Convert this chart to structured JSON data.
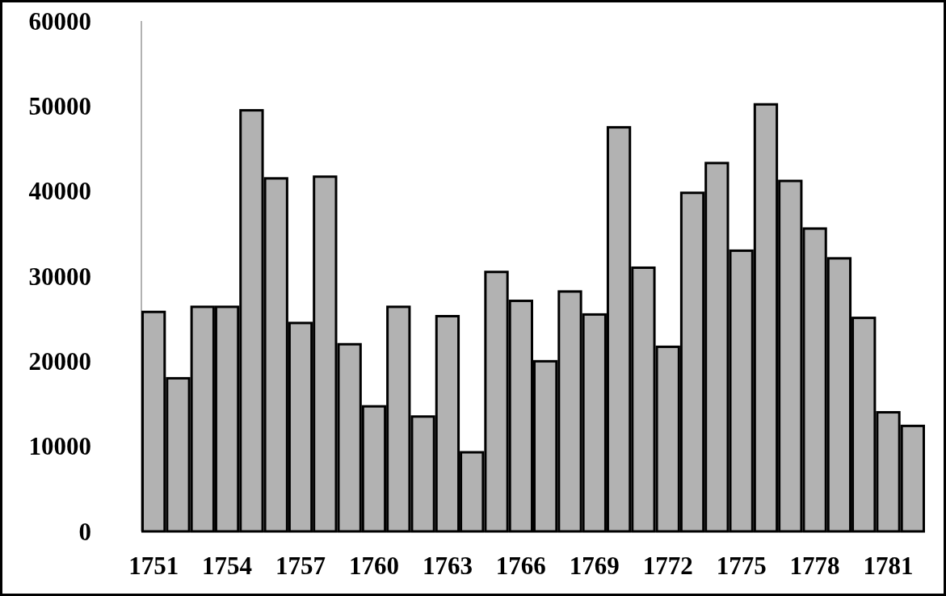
{
  "chart_data": {
    "type": "bar",
    "categories": [
      "1751",
      null,
      null,
      "1754",
      null,
      null,
      "1757",
      null,
      null,
      "1760",
      null,
      null,
      "1763",
      null,
      null,
      "1766",
      null,
      null,
      "1769",
      null,
      null,
      "1772",
      null,
      null,
      "1775",
      null,
      null,
      "1778",
      null,
      null,
      "1781",
      null
    ],
    "values": [
      25800,
      18000,
      26400,
      26400,
      49500,
      41500,
      24500,
      41700,
      22000,
      14700,
      26400,
      13500,
      25300,
      9300,
      30500,
      27100,
      20000,
      28200,
      25500,
      47500,
      31000,
      21700,
      39800,
      43300,
      33000,
      50200,
      41200,
      35600,
      32100,
      25100,
      14000,
      12400
    ],
    "color": "#b2b2b2",
    "ylim": [
      0,
      60000
    ],
    "yticks": [
      0,
      10000,
      20000,
      30000,
      40000,
      50000,
      60000
    ],
    "grid": false
  }
}
